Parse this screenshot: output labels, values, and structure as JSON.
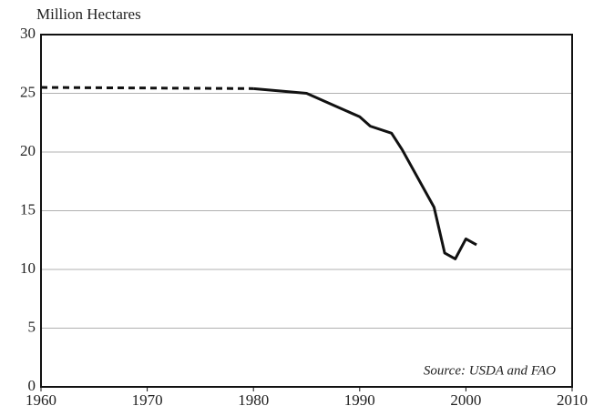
{
  "chart_data": {
    "type": "line",
    "y_label": "Million Hectares",
    "annotation": "Source: USDA and FAO",
    "x": [
      1960,
      1980,
      1985,
      1988,
      1990,
      1991,
      1993,
      1994,
      1997,
      1998,
      1999,
      2000,
      2001
    ],
    "series": [
      {
        "color": "#111111",
        "dashed": true,
        "values": [
          25.5,
          25.4,
          null,
          null,
          null,
          null,
          null,
          null,
          null,
          null,
          null,
          null,
          null
        ]
      },
      {
        "color": "#111111",
        "dashed": false,
        "values": [
          null,
          25.4,
          25.0,
          23.8,
          23.0,
          22.2,
          21.6,
          20.2,
          15.3,
          11.4,
          10.9,
          12.6,
          12.1
        ]
      }
    ],
    "xlim": [
      1960,
      2010
    ],
    "xticks": [
      1960,
      1970,
      1980,
      1990,
      2000,
      2010
    ],
    "ylim": [
      0,
      30
    ],
    "yticks": [
      0,
      5,
      10,
      15,
      20,
      25,
      30
    ],
    "grid": true
  }
}
